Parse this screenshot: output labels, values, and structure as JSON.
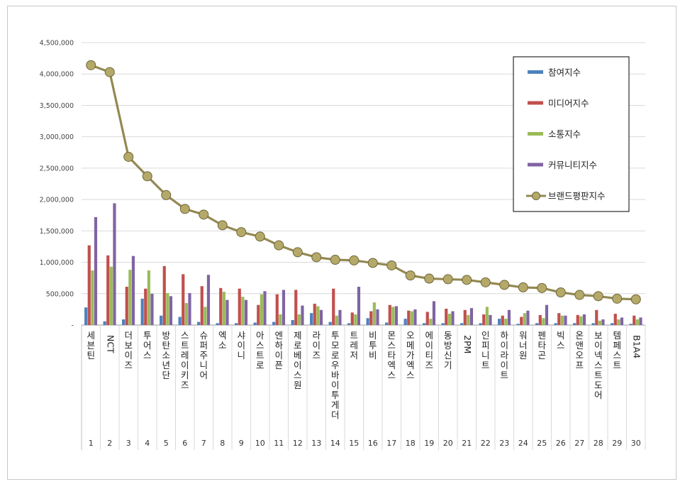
{
  "chart_data": {
    "type": "bar",
    "title": "",
    "xlabel": "",
    "ylabel": "",
    "ylim": [
      0,
      4500000
    ],
    "ytick_values": [
      0,
      500000,
      1000000,
      1500000,
      2000000,
      2500000,
      3000000,
      3500000,
      4000000,
      4500000
    ],
    "ytick_labels": [
      "-",
      "500,000",
      "1,000,000",
      "1,500,000",
      "2,000,000",
      "2,500,000",
      "3,000,000",
      "3,500,000",
      "4,000,000",
      "4,500,000"
    ],
    "grid": true,
    "legend_position": "top-right",
    "categories": [
      "세븐틴",
      "NCT",
      "더보이즈",
      "투어스",
      "방탄소년단",
      "스트레이키즈",
      "슈퍼주니어",
      "엑소",
      "샤이니",
      "아스트로",
      "엔하이픈",
      "제로베이스원",
      "라이즈",
      "투모로우바이투게더",
      "트레저",
      "비투비",
      "몬스타엑스",
      "오메가엑스",
      "에이티즈",
      "동방신기",
      "2PM",
      "인피니트",
      "하이라이트",
      "워너원",
      "펜타곤",
      "빅스",
      "온앤오프",
      "보이넥스트도어",
      "템페스트",
      "B1A4"
    ],
    "rank_labels": [
      "1",
      "2",
      "3",
      "4",
      "5",
      "6",
      "7",
      "8",
      "9",
      "10",
      "11",
      "12",
      "13",
      "14",
      "15",
      "16",
      "17",
      "18",
      "19",
      "20",
      "21",
      "22",
      "23",
      "24",
      "25",
      "26",
      "27",
      "28",
      "29",
      "30"
    ],
    "series": [
      {
        "name": "참여지수",
        "type": "bar",
        "color": "#4f81bd",
        "values": [
          280000,
          60000,
          90000,
          420000,
          150000,
          130000,
          50000,
          30000,
          30000,
          40000,
          50000,
          80000,
          190000,
          50000,
          30000,
          110000,
          40000,
          100000,
          30000,
          30000,
          30000,
          30000,
          100000,
          20000,
          30000,
          30000,
          30000,
          30000,
          30000,
          20000
        ]
      },
      {
        "name": "미디어지수",
        "type": "bar",
        "color": "#c0504d",
        "values": [
          1270000,
          1110000,
          610000,
          580000,
          940000,
          810000,
          620000,
          590000,
          580000,
          320000,
          490000,
          560000,
          340000,
          580000,
          200000,
          220000,
          320000,
          230000,
          210000,
          260000,
          240000,
          170000,
          150000,
          130000,
          160000,
          190000,
          160000,
          240000,
          180000,
          150000
        ]
      },
      {
        "name": "소통지수",
        "type": "bar",
        "color": "#9bbb59",
        "values": [
          870000,
          930000,
          880000,
          870000,
          510000,
          350000,
          290000,
          530000,
          450000,
          490000,
          170000,
          170000,
          300000,
          150000,
          170000,
          360000,
          290000,
          220000,
          100000,
          180000,
          160000,
          290000,
          100000,
          190000,
          110000,
          150000,
          140000,
          70000,
          90000,
          90000
        ]
      },
      {
        "name": "커뮤니티지수",
        "type": "bar",
        "color": "#8064a2",
        "values": [
          1720000,
          1940000,
          1100000,
          500000,
          460000,
          510000,
          800000,
          400000,
          400000,
          540000,
          560000,
          310000,
          240000,
          240000,
          610000,
          250000,
          300000,
          250000,
          380000,
          220000,
          270000,
          160000,
          240000,
          230000,
          320000,
          150000,
          170000,
          90000,
          120000,
          120000
        ]
      },
      {
        "name": "브랜드평판지수",
        "type": "line",
        "color": "#938953",
        "values": [
          4140000,
          4030000,
          2680000,
          2370000,
          2070000,
          1850000,
          1760000,
          1590000,
          1480000,
          1410000,
          1270000,
          1160000,
          1080000,
          1040000,
          1030000,
          990000,
          950000,
          790000,
          740000,
          730000,
          720000,
          680000,
          640000,
          600000,
          590000,
          520000,
          480000,
          460000,
          420000,
          410000
        ]
      }
    ]
  }
}
